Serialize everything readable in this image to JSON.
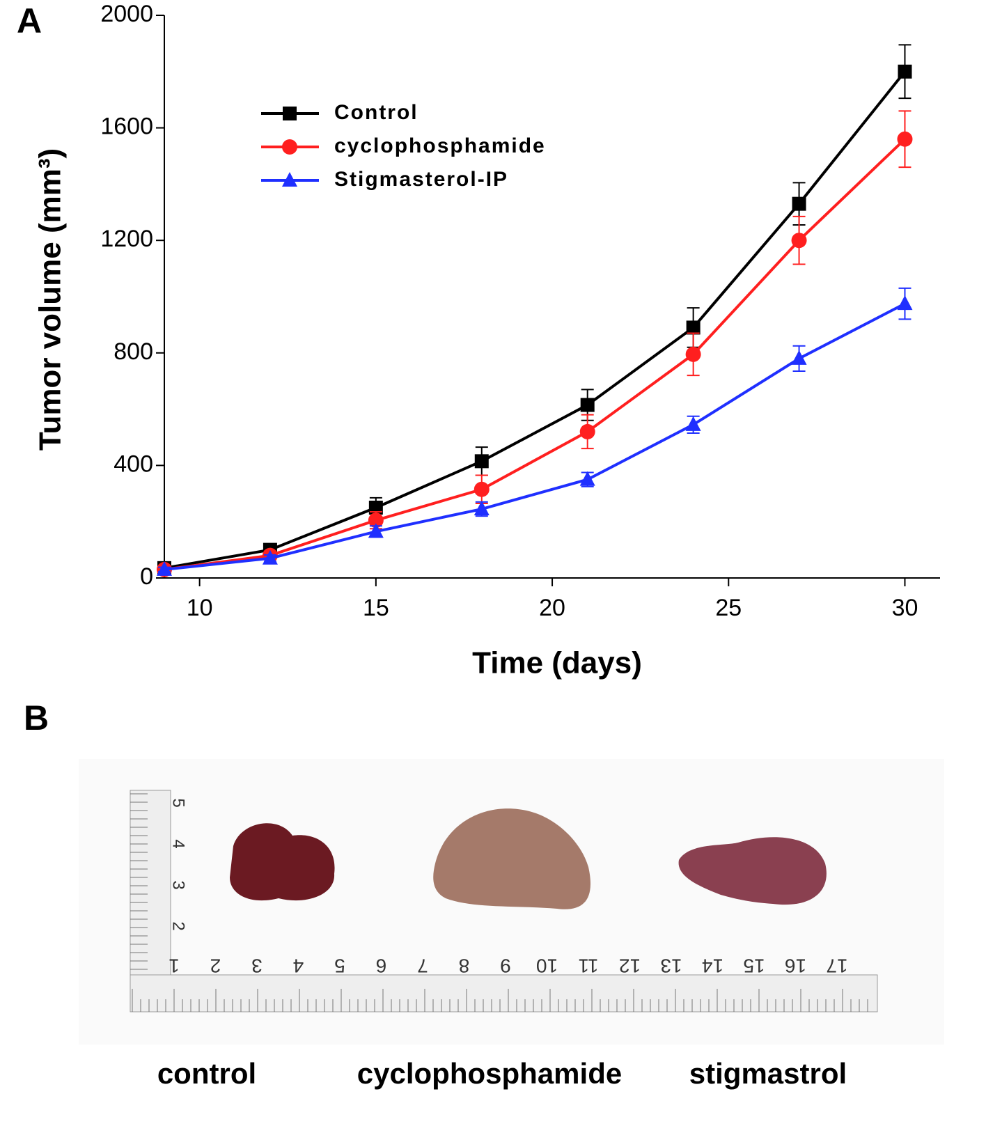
{
  "panel_labels": [
    "A",
    "B"
  ],
  "chart_data": {
    "type": "line",
    "xlabel": "Time (days)",
    "ylabel": "Tumor volume (mm³)",
    "x": [
      9,
      12,
      15,
      18,
      21,
      24,
      27,
      30
    ],
    "series": [
      {
        "name": "Control",
        "color": "#000000",
        "marker": "square",
        "values": [
          35,
          100,
          250,
          415,
          615,
          890,
          1330,
          1800
        ],
        "errors": [
          10,
          20,
          35,
          50,
          55,
          70,
          75,
          95
        ]
      },
      {
        "name": "cyclophosphamide",
        "color": "#ff1f1f",
        "marker": "circle",
        "values": [
          30,
          80,
          205,
          315,
          520,
          795,
          1200,
          1560
        ],
        "errors": [
          10,
          15,
          30,
          50,
          60,
          75,
          85,
          100
        ]
      },
      {
        "name": "Stigmasterol-IP",
        "color": "#1f2fff",
        "marker": "triangle",
        "values": [
          30,
          70,
          165,
          245,
          350,
          545,
          780,
          975
        ],
        "errors": [
          8,
          12,
          20,
          25,
          25,
          30,
          45,
          55
        ]
      }
    ],
    "xlim": [
      9,
      30.8
    ],
    "ylim": [
      0,
      2000
    ],
    "xticks": [
      10,
      15,
      20,
      25,
      30
    ],
    "yticks": [
      0,
      400,
      800,
      1200,
      1600,
      2000
    ],
    "legend": "upper left"
  },
  "photo": {
    "labels": [
      "control",
      "cyclophosphamide",
      "stigmastrol"
    ],
    "ruler": {
      "horizontal": [
        1,
        2,
        3,
        4,
        5,
        6,
        7,
        8,
        9,
        10,
        11,
        12,
        13,
        14,
        15,
        16,
        17
      ],
      "vertical": [
        2,
        3,
        4,
        5
      ]
    }
  }
}
